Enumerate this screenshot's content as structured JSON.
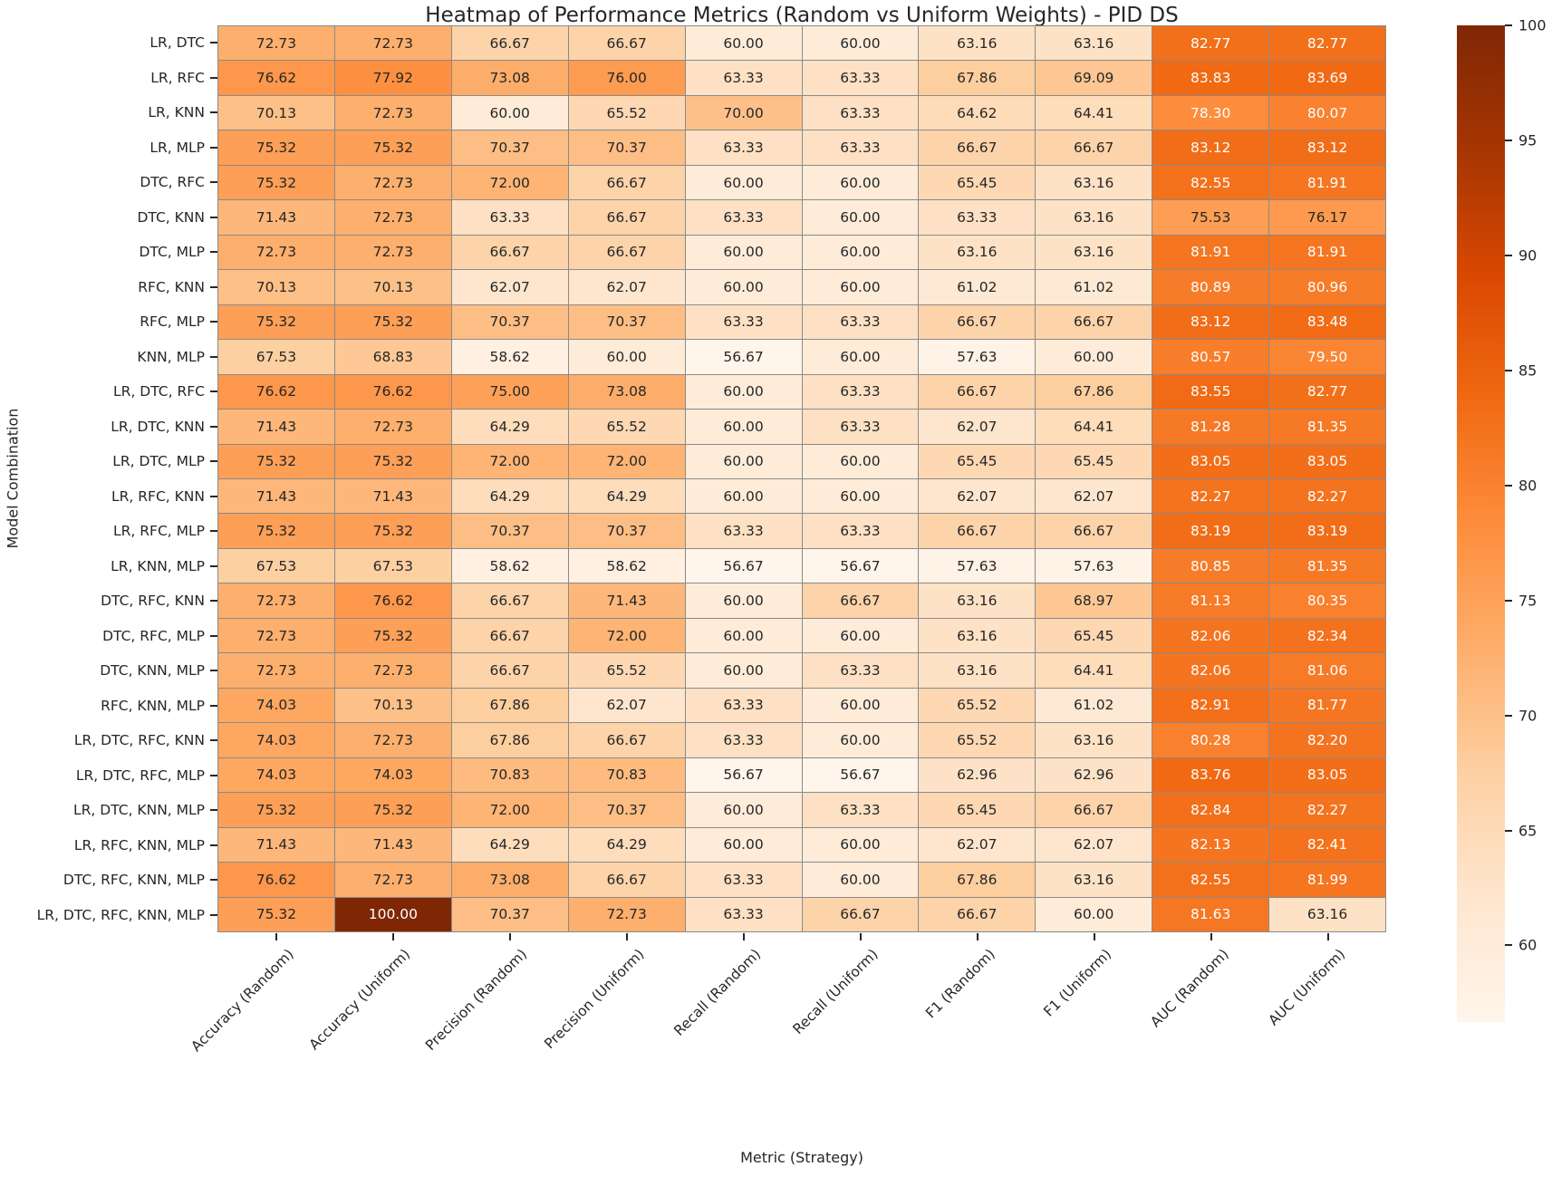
{
  "title": "Heatmap of Performance Metrics (Random vs Uniform Weights) - PID DS",
  "chart_data": {
    "type": "heatmap",
    "title": "Heatmap of Performance Metrics (Random vs Uniform Weights) - PID DS",
    "xlabel": "Metric (Strategy)",
    "ylabel": "Model Combination",
    "columns": [
      "Accuracy (Random)",
      "Accuracy (Uniform)",
      "Precision (Random)",
      "Precision (Uniform)",
      "Recall (Random)",
      "Recall (Uniform)",
      "F1 (Random)",
      "F1 (Uniform)",
      "AUC (Random)",
      "AUC (Uniform)"
    ],
    "rows": [
      "LR, DTC",
      "LR, RFC",
      "LR, KNN",
      "LR, MLP",
      "DTC, RFC",
      "DTC, KNN",
      "DTC, MLP",
      "RFC, KNN",
      "RFC, MLP",
      "KNN, MLP",
      "LR, DTC, RFC",
      "LR, DTC, KNN",
      "LR, DTC, MLP",
      "LR, RFC, KNN",
      "LR, RFC, MLP",
      "LR, KNN, MLP",
      "DTC, RFC, KNN",
      "DTC, RFC, MLP",
      "DTC, KNN, MLP",
      "RFC, KNN, MLP",
      "LR, DTC, RFC, KNN",
      "LR, DTC, RFC, MLP",
      "LR, DTC, KNN, MLP",
      "LR, RFC, KNN, MLP",
      "DTC, RFC, KNN, MLP",
      "LR, DTC, RFC, KNN, MLP"
    ],
    "values": [
      [
        72.73,
        72.73,
        66.67,
        66.67,
        60.0,
        60.0,
        63.16,
        63.16,
        82.77,
        82.77
      ],
      [
        76.62,
        77.92,
        73.08,
        76.0,
        63.33,
        63.33,
        67.86,
        69.09,
        83.83,
        83.69
      ],
      [
        70.13,
        72.73,
        60.0,
        65.52,
        70.0,
        63.33,
        64.62,
        64.41,
        78.3,
        80.07
      ],
      [
        75.32,
        75.32,
        70.37,
        70.37,
        63.33,
        63.33,
        66.67,
        66.67,
        83.12,
        83.12
      ],
      [
        75.32,
        72.73,
        72.0,
        66.67,
        60.0,
        60.0,
        65.45,
        63.16,
        82.55,
        81.91
      ],
      [
        71.43,
        72.73,
        63.33,
        66.67,
        63.33,
        60.0,
        63.33,
        63.16,
        75.53,
        76.17
      ],
      [
        72.73,
        72.73,
        66.67,
        66.67,
        60.0,
        60.0,
        63.16,
        63.16,
        81.91,
        81.91
      ],
      [
        70.13,
        70.13,
        62.07,
        62.07,
        60.0,
        60.0,
        61.02,
        61.02,
        80.89,
        80.96
      ],
      [
        75.32,
        75.32,
        70.37,
        70.37,
        63.33,
        63.33,
        66.67,
        66.67,
        83.12,
        83.48
      ],
      [
        67.53,
        68.83,
        58.62,
        60.0,
        56.67,
        60.0,
        57.63,
        60.0,
        80.57,
        79.5
      ],
      [
        76.62,
        76.62,
        75.0,
        73.08,
        60.0,
        63.33,
        66.67,
        67.86,
        83.55,
        82.77
      ],
      [
        71.43,
        72.73,
        64.29,
        65.52,
        60.0,
        63.33,
        62.07,
        64.41,
        81.28,
        81.35
      ],
      [
        75.32,
        75.32,
        72.0,
        72.0,
        60.0,
        60.0,
        65.45,
        65.45,
        83.05,
        83.05
      ],
      [
        71.43,
        71.43,
        64.29,
        64.29,
        60.0,
        60.0,
        62.07,
        62.07,
        82.27,
        82.27
      ],
      [
        75.32,
        75.32,
        70.37,
        70.37,
        63.33,
        63.33,
        66.67,
        66.67,
        83.19,
        83.19
      ],
      [
        67.53,
        67.53,
        58.62,
        58.62,
        56.67,
        56.67,
        57.63,
        57.63,
        80.85,
        81.35
      ],
      [
        72.73,
        76.62,
        66.67,
        71.43,
        60.0,
        66.67,
        63.16,
        68.97,
        81.13,
        80.35
      ],
      [
        72.73,
        75.32,
        66.67,
        72.0,
        60.0,
        60.0,
        63.16,
        65.45,
        82.06,
        82.34
      ],
      [
        72.73,
        72.73,
        66.67,
        65.52,
        60.0,
        63.33,
        63.16,
        64.41,
        82.06,
        81.06
      ],
      [
        74.03,
        70.13,
        67.86,
        62.07,
        63.33,
        60.0,
        65.52,
        61.02,
        82.91,
        81.77
      ],
      [
        74.03,
        72.73,
        67.86,
        66.67,
        63.33,
        60.0,
        65.52,
        63.16,
        80.28,
        82.2
      ],
      [
        74.03,
        74.03,
        70.83,
        70.83,
        56.67,
        56.67,
        62.96,
        62.96,
        83.76,
        83.05
      ],
      [
        75.32,
        75.32,
        72.0,
        70.37,
        60.0,
        63.33,
        65.45,
        66.67,
        82.84,
        82.27
      ],
      [
        71.43,
        71.43,
        64.29,
        64.29,
        60.0,
        60.0,
        62.07,
        62.07,
        82.13,
        82.41
      ],
      [
        76.62,
        72.73,
        73.08,
        66.67,
        63.33,
        60.0,
        67.86,
        63.16,
        82.55,
        81.99
      ],
      [
        75.32,
        100.0,
        70.37,
        72.73,
        63.33,
        66.67,
        66.67,
        60.0,
        81.63,
        63.16
      ]
    ],
    "value_format": "2-decimals",
    "colormap": "Oranges",
    "colormap_anchors": [
      {
        "t": 0.0,
        "color": "#fff5eb"
      },
      {
        "t": 0.125,
        "color": "#fee6ce"
      },
      {
        "t": 0.25,
        "color": "#fdd0a2"
      },
      {
        "t": 0.375,
        "color": "#fdae6b"
      },
      {
        "t": 0.5,
        "color": "#fd8d3c"
      },
      {
        "t": 0.625,
        "color": "#f16913"
      },
      {
        "t": 0.75,
        "color": "#d94801"
      },
      {
        "t": 0.875,
        "color": "#a63603"
      },
      {
        "t": 1.0,
        "color": "#7f2704"
      }
    ],
    "vmin": 56.67,
    "vmax": 100,
    "colorbar_ticks": [
      100,
      95,
      90,
      85,
      80,
      75,
      70,
      65,
      60
    ],
    "colorbar_position": "right",
    "grid_line_color": "#8a8a8a",
    "annotation_text_dark": "#262626",
    "annotation_text_light": "#ffffff",
    "x_tick_rotation_deg": 45,
    "grid": "cell-borders"
  }
}
